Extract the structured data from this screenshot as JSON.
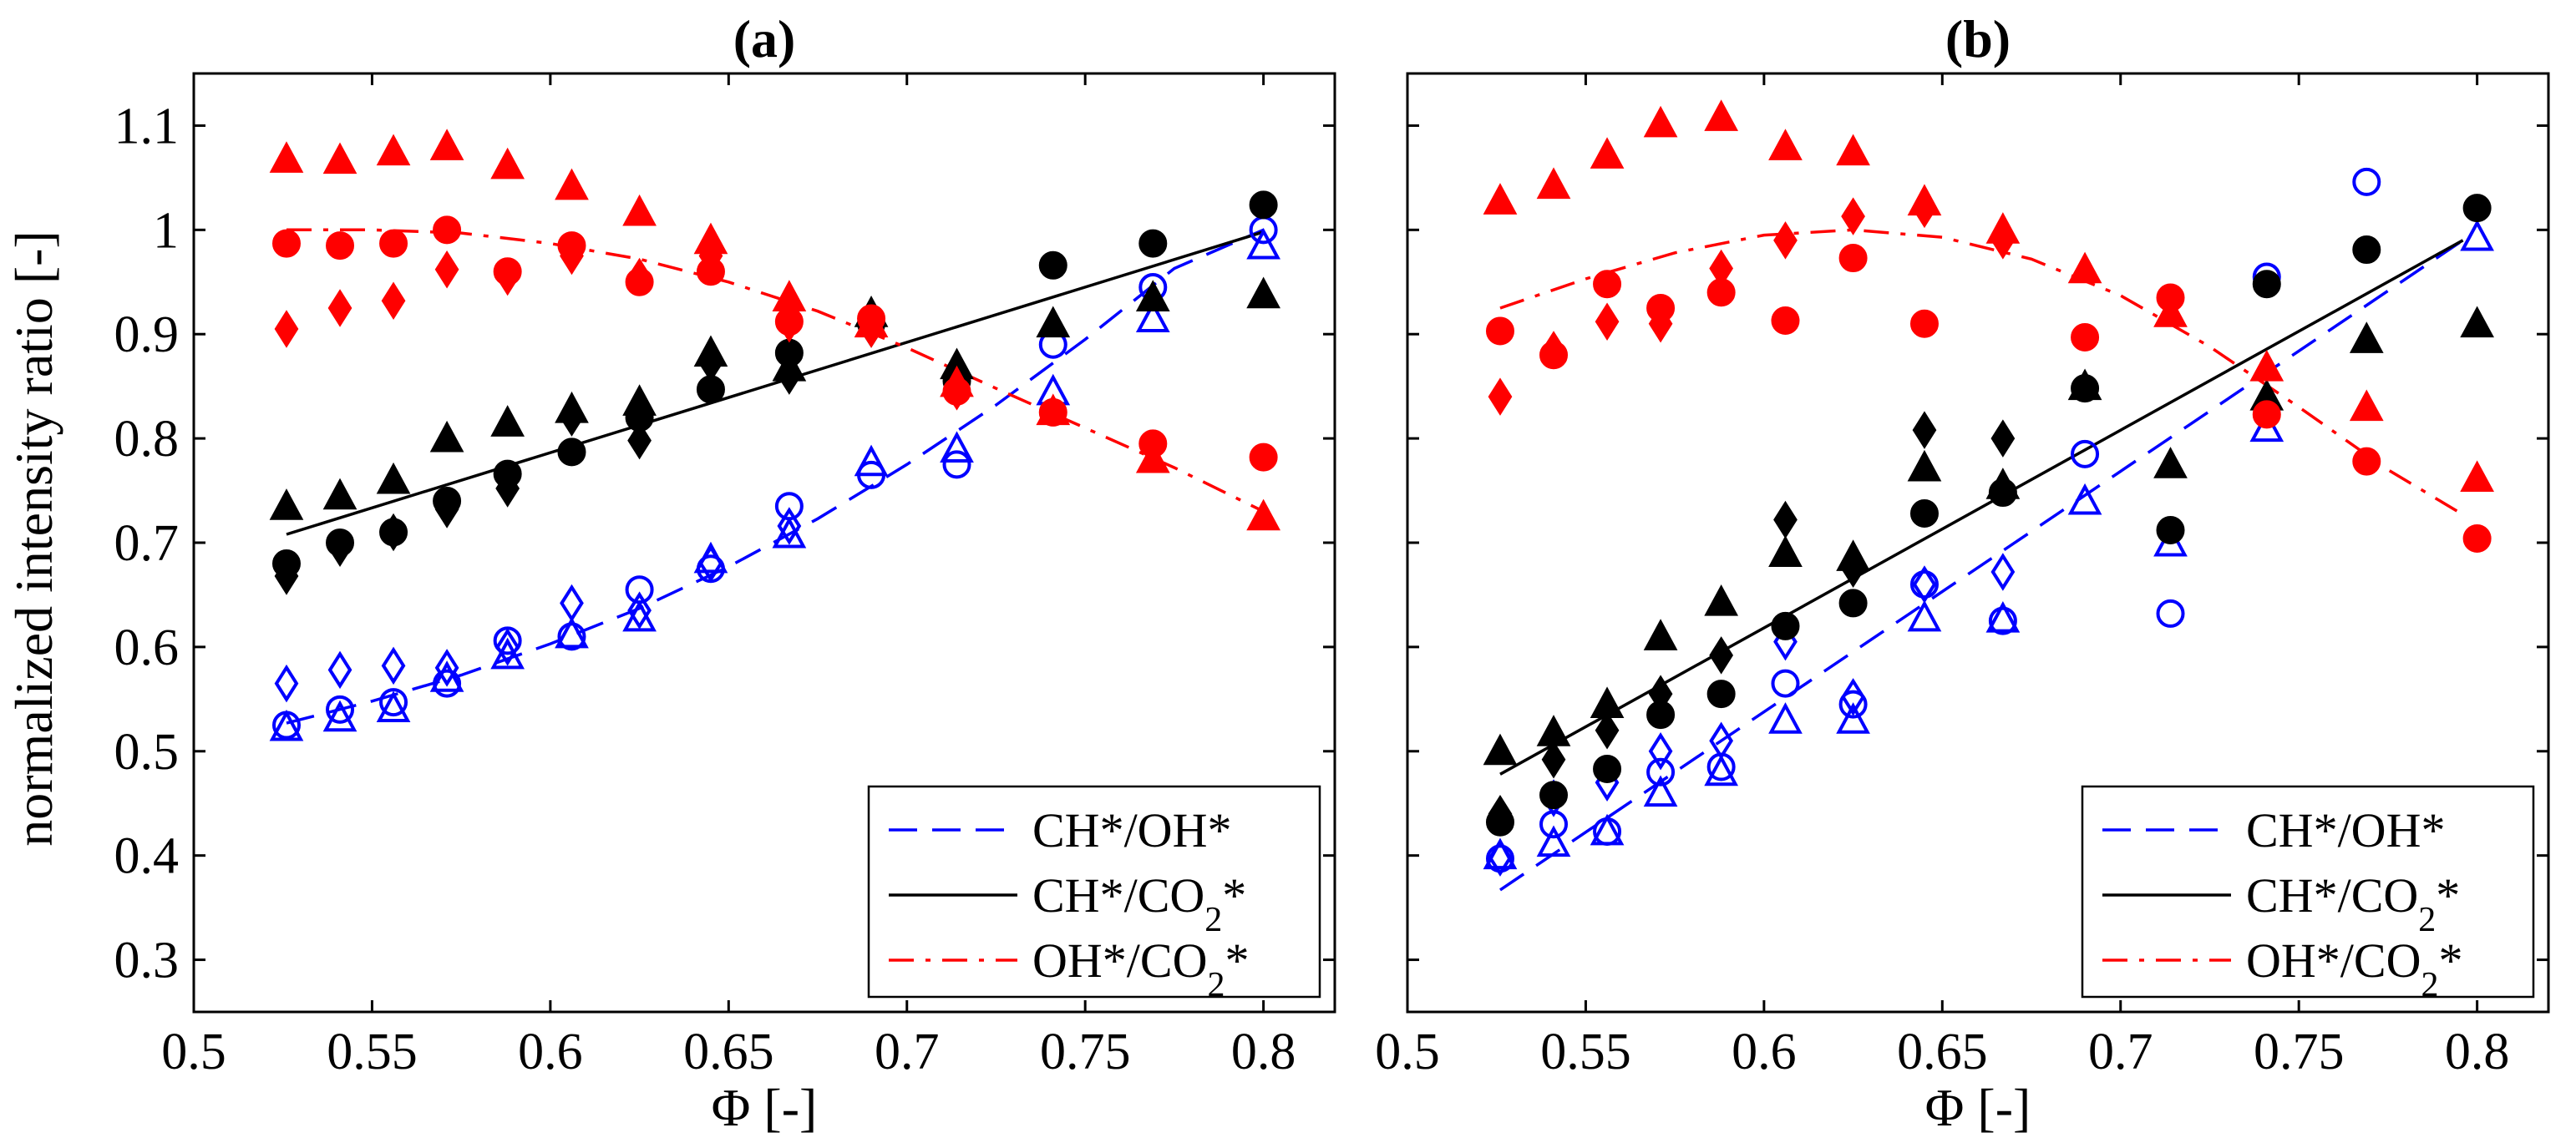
{
  "figure": {
    "ylabel": "normalized intensity ratio [-]",
    "xlabel": "Φ [-]"
  },
  "chart_data": [
    {
      "type": "scatter",
      "panel_title": "(a)",
      "xlabel": "Φ [-]",
      "ylabel": "normalized intensity ratio [-]",
      "xlim": [
        0.5,
        0.82
      ],
      "ylim": [
        0.25,
        1.15
      ],
      "xticks": [
        "0.5",
        "0.55",
        "0.6",
        "0.65",
        "0.7",
        "0.75",
        "0.8"
      ],
      "yticks": [
        "0.3",
        "0.4",
        "0.5",
        "0.6",
        "0.7",
        "0.8",
        "0.9",
        "1",
        "1.1"
      ],
      "legend_position": "bottom-right",
      "legend": [
        "CH*/OH*",
        "CH*/CO2*",
        "OH*/CO2*"
      ],
      "colors": {
        "CH_OH": "#0000ff",
        "CH_CO2": "#000000",
        "OH_CO2": "#ff0000"
      },
      "fit_lines": [
        {
          "name": "CH*/OH*",
          "style": "dashed",
          "color": "#0000ff",
          "x": [
            0.526,
            0.55,
            0.575,
            0.6,
            0.625,
            0.65,
            0.675,
            0.7,
            0.725,
            0.75,
            0.775,
            0.8
          ],
          "y": [
            0.527,
            0.548,
            0.573,
            0.603,
            0.637,
            0.677,
            0.723,
            0.775,
            0.832,
            0.895,
            0.963,
            1.0
          ]
        },
        {
          "name": "CH*/CO2*",
          "style": "solid",
          "color": "#000000",
          "x": [
            0.526,
            0.8
          ],
          "y": [
            0.708,
            0.998
          ]
        },
        {
          "name": "OH*/CO2*",
          "style": "dashdot",
          "color": "#ff0000",
          "x": [
            0.526,
            0.55,
            0.575,
            0.6,
            0.625,
            0.65,
            0.675,
            0.7,
            0.725,
            0.75,
            0.775,
            0.8
          ],
          "y": [
            1.0,
            1.0,
            0.997,
            0.987,
            0.972,
            0.95,
            0.922,
            0.887,
            0.848,
            0.81,
            0.772,
            0.73
          ]
        }
      ],
      "series": [
        {
          "name": "CH*/OH* circles",
          "marker": "circle",
          "filled": false,
          "color": "#0000ff",
          "x": [
            0.526,
            0.541,
            0.556,
            0.571,
            0.588,
            0.606,
            0.625,
            0.645,
            0.667,
            0.69,
            0.714,
            0.741,
            0.769,
            0.8
          ],
          "y": [
            0.525,
            0.54,
            0.547,
            0.565,
            0.606,
            0.61,
            0.655,
            0.675,
            0.735,
            0.765,
            0.775,
            0.89,
            0.945,
            1.0
          ]
        },
        {
          "name": "CH*/OH* triangles",
          "marker": "triangle",
          "filled": false,
          "color": "#0000ff",
          "x": [
            0.526,
            0.541,
            0.556,
            0.571,
            0.588,
            0.606,
            0.625,
            0.645,
            0.667,
            0.69,
            0.714,
            0.741,
            0.769,
            0.8
          ],
          "y": [
            0.523,
            0.532,
            0.541,
            0.57,
            0.592,
            0.612,
            0.628,
            0.684,
            0.708,
            0.777,
            0.79,
            0.845,
            0.915,
            0.985
          ]
        },
        {
          "name": "CH*/OH* diamonds",
          "marker": "diamond",
          "filled": false,
          "color": "#0000ff",
          "x": [
            0.526,
            0.541,
            0.556,
            0.571,
            0.588,
            0.606,
            0.625,
            0.645,
            0.667
          ],
          "y": [
            0.565,
            0.578,
            0.582,
            0.58,
            0.6,
            0.642,
            0.635,
            0.68,
            0.716
          ]
        },
        {
          "name": "CH*/CO2* circles",
          "marker": "circle",
          "filled": true,
          "color": "#000000",
          "x": [
            0.526,
            0.541,
            0.556,
            0.571,
            0.588,
            0.606,
            0.625,
            0.645,
            0.667,
            0.69,
            0.714,
            0.741,
            0.769,
            0.8
          ],
          "y": [
            0.68,
            0.7,
            0.71,
            0.74,
            0.766,
            0.787,
            0.82,
            0.847,
            0.882,
            0.91,
            0.855,
            0.966,
            0.987,
            1.024
          ]
        },
        {
          "name": "CH*/CO2* triangles",
          "marker": "triangle",
          "filled": true,
          "color": "#000000",
          "x": [
            0.526,
            0.541,
            0.556,
            0.571,
            0.588,
            0.606,
            0.625,
            0.645,
            0.667,
            0.69,
            0.714,
            0.741,
            0.769,
            0.8
          ],
          "y": [
            0.735,
            0.745,
            0.76,
            0.8,
            0.815,
            0.828,
            0.835,
            0.882,
            0.868,
            0.92,
            0.87,
            0.91,
            0.935,
            0.938
          ]
        },
        {
          "name": "CH*/CO2* diamonds",
          "marker": "diamond",
          "filled": true,
          "color": "#000000",
          "x": [
            0.526,
            0.541,
            0.556,
            0.571,
            0.588,
            0.606,
            0.625,
            0.645,
            0.667,
            0.69,
            0.714
          ],
          "y": [
            0.668,
            0.695,
            0.71,
            0.732,
            0.752,
            0.82,
            0.798,
            0.872,
            0.86,
            0.905,
            0.862
          ]
        },
        {
          "name": "OH*/CO2* circles",
          "marker": "circle",
          "filled": true,
          "color": "#ff0000",
          "x": [
            0.526,
            0.541,
            0.556,
            0.571,
            0.588,
            0.606,
            0.625,
            0.645,
            0.667,
            0.69,
            0.714,
            0.741,
            0.769,
            0.8
          ],
          "y": [
            0.987,
            0.985,
            0.987,
            1.0,
            0.96,
            0.985,
            0.95,
            0.96,
            0.912,
            0.915,
            0.845,
            0.825,
            0.795,
            0.782
          ]
        },
        {
          "name": "OH*/CO2* triangles",
          "marker": "triangle",
          "filled": true,
          "color": "#ff0000",
          "x": [
            0.526,
            0.541,
            0.556,
            0.571,
            0.588,
            0.606,
            0.625,
            0.645,
            0.667,
            0.69,
            0.714,
            0.741,
            0.769,
            0.8
          ],
          "y": [
            1.068,
            1.067,
            1.075,
            1.08,
            1.062,
            1.042,
            1.017,
            0.99,
            0.935,
            0.91,
            0.853,
            0.826,
            0.78,
            0.725
          ]
        },
        {
          "name": "OH*/CO2* diamonds",
          "marker": "diamond",
          "filled": true,
          "color": "#ff0000",
          "x": [
            0.526,
            0.541,
            0.556,
            0.571,
            0.588,
            0.606,
            0.625,
            0.645,
            0.667,
            0.69,
            0.714
          ],
          "y": [
            0.905,
            0.925,
            0.932,
            0.962,
            0.955,
            0.975,
            0.955,
            0.975,
            0.91,
            0.905,
            0.845
          ]
        }
      ]
    },
    {
      "type": "scatter",
      "panel_title": "(b)",
      "xlabel": "Φ [-]",
      "xlim": [
        0.5,
        0.82
      ],
      "ylim": [
        0.25,
        1.15
      ],
      "xticks": [
        "0.5",
        "0.55",
        "0.6",
        "0.65",
        "0.7",
        "0.75",
        "0.8"
      ],
      "legend_position": "bottom-right",
      "legend": [
        "CH*/OH*",
        "CH*/CO2*",
        "OH*/CO2*"
      ],
      "colors": {
        "CH_OH": "#0000ff",
        "CH_CO2": "#000000",
        "OH_CO2": "#ff0000"
      },
      "fit_lines": [
        {
          "name": "CH*/OH*",
          "style": "dashed",
          "color": "#0000ff",
          "x": [
            0.526,
            0.796
          ],
          "y": [
            0.367,
            0.99
          ]
        },
        {
          "name": "CH*/CO2*",
          "style": "solid",
          "color": "#000000",
          "x": [
            0.526,
            0.796
          ],
          "y": [
            0.478,
            0.99
          ]
        },
        {
          "name": "OH*/CO2*",
          "style": "dashdot",
          "color": "#ff0000",
          "x": [
            0.526,
            0.55,
            0.575,
            0.6,
            0.625,
            0.65,
            0.675,
            0.7,
            0.725,
            0.75,
            0.775,
            0.796
          ],
          "y": [
            0.925,
            0.953,
            0.978,
            0.995,
            1.0,
            0.993,
            0.972,
            0.937,
            0.888,
            0.83,
            0.77,
            0.727
          ]
        }
      ],
      "series": [
        {
          "name": "CH*/OH* circles",
          "marker": "circle",
          "filled": false,
          "color": "#0000ff",
          "x": [
            0.526,
            0.541,
            0.556,
            0.571,
            0.588,
            0.606,
            0.625,
            0.645,
            0.667,
            0.69,
            0.714,
            0.741,
            0.769
          ],
          "y": [
            0.397,
            0.43,
            0.423,
            0.48,
            0.485,
            0.565,
            0.545,
            0.66,
            0.625,
            0.785,
            0.632,
            0.955,
            1.046
          ]
        },
        {
          "name": "CH*/OH* triangles",
          "marker": "triangle",
          "filled": false,
          "color": "#0000ff",
          "x": [
            0.526,
            0.541,
            0.556,
            0.571,
            0.588,
            0.606,
            0.625,
            0.645,
            0.667,
            0.69,
            0.714,
            0.741,
            0.8
          ],
          "y": [
            0.4,
            0.412,
            0.423,
            0.46,
            0.48,
            0.53,
            0.53,
            0.628,
            0.627,
            0.74,
            0.7,
            0.81,
            0.993
          ]
        },
        {
          "name": "CH*/OH* diamonds",
          "marker": "diamond",
          "filled": false,
          "color": "#0000ff",
          "x": [
            0.526,
            0.541,
            0.556,
            0.571,
            0.588,
            0.606,
            0.625,
            0.645,
            0.667
          ],
          "y": [
            0.398,
            0.455,
            0.47,
            0.5,
            0.51,
            0.605,
            0.552,
            0.66,
            0.672
          ]
        },
        {
          "name": "CH*/CO2* circles",
          "marker": "circle",
          "filled": true,
          "color": "#000000",
          "x": [
            0.526,
            0.541,
            0.556,
            0.571,
            0.588,
            0.606,
            0.625,
            0.645,
            0.667,
            0.69,
            0.714,
            0.741,
            0.769,
            0.8
          ],
          "y": [
            0.432,
            0.458,
            0.483,
            0.535,
            0.555,
            0.62,
            0.642,
            0.728,
            0.748,
            0.848,
            0.712,
            0.948,
            0.981,
            1.021
          ]
        },
        {
          "name": "CH*/CO2* triangles",
          "marker": "triangle",
          "filled": true,
          "color": "#000000",
          "x": [
            0.526,
            0.541,
            0.556,
            0.571,
            0.588,
            0.606,
            0.625,
            0.645,
            0.667,
            0.69,
            0.714,
            0.741,
            0.769,
            0.8
          ],
          "y": [
            0.5,
            0.518,
            0.545,
            0.61,
            0.643,
            0.69,
            0.686,
            0.772,
            0.755,
            0.85,
            0.775,
            0.84,
            0.895,
            0.91
          ]
        },
        {
          "name": "CH*/CO2* diamonds",
          "marker": "diamond",
          "filled": true,
          "color": "#000000",
          "x": [
            0.526,
            0.541,
            0.556,
            0.571,
            0.588,
            0.606,
            0.625,
            0.645,
            0.667
          ],
          "y": [
            0.44,
            0.492,
            0.52,
            0.555,
            0.592,
            0.722,
            0.675,
            0.808,
            0.8
          ]
        },
        {
          "name": "OH*/CO2* circles",
          "marker": "circle",
          "filled": true,
          "color": "#ff0000",
          "x": [
            0.526,
            0.541,
            0.556,
            0.571,
            0.588,
            0.606,
            0.625,
            0.645,
            0.69,
            0.714,
            0.741,
            0.769,
            0.8
          ],
          "y": [
            0.903,
            0.88,
            0.948,
            0.925,
            0.94,
            0.913,
            0.973,
            0.91,
            0.897,
            0.935,
            0.823,
            0.778,
            0.704
          ]
        },
        {
          "name": "OH*/CO2* triangles",
          "marker": "triangle",
          "filled": true,
          "color": "#ff0000",
          "x": [
            0.526,
            0.541,
            0.556,
            0.571,
            0.588,
            0.606,
            0.625,
            0.645,
            0.667,
            0.69,
            0.714,
            0.741,
            0.769,
            0.8
          ],
          "y": [
            1.028,
            1.043,
            1.072,
            1.102,
            1.108,
            1.08,
            1.075,
            1.027,
            1.0,
            0.962,
            0.92,
            0.868,
            0.83,
            0.762
          ]
        },
        {
          "name": "OH*/CO2* diamonds",
          "marker": "diamond",
          "filled": true,
          "color": "#ff0000",
          "x": [
            0.526,
            0.541,
            0.556,
            0.571,
            0.588,
            0.606,
            0.625,
            0.645,
            0.667
          ],
          "y": [
            0.84,
            0.885,
            0.912,
            0.91,
            0.963,
            0.99,
            1.013,
            1.02,
            0.99
          ]
        }
      ]
    }
  ]
}
